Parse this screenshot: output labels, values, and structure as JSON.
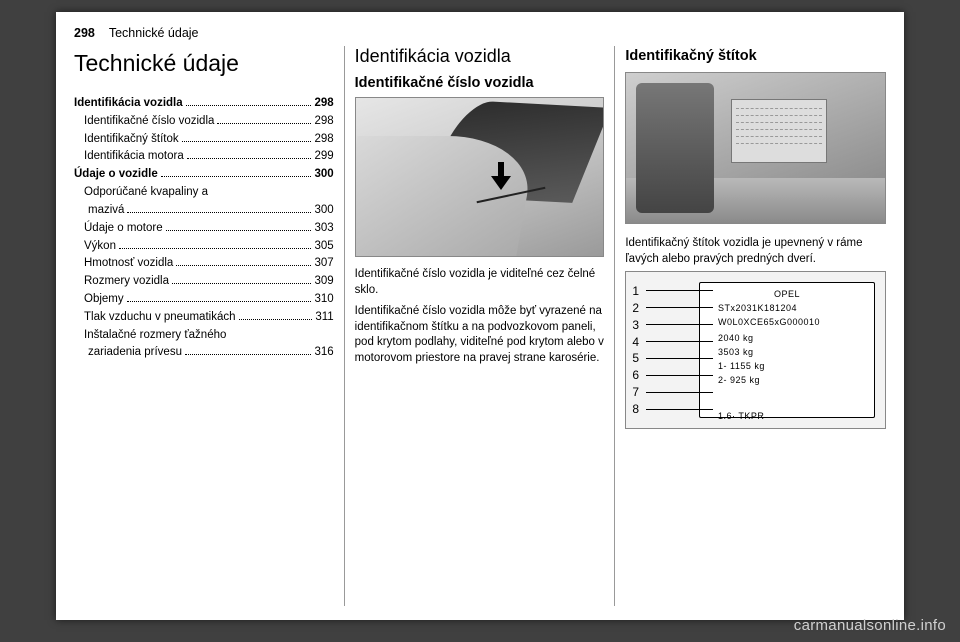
{
  "header": {
    "page_number": "298",
    "section": "Technické údaje"
  },
  "col1": {
    "title": "Technické údaje",
    "toc": [
      {
        "label": "Identifikácia vozidla",
        "page": "298",
        "bold": true
      },
      {
        "label": "Identifikačné číslo vozidla",
        "page": "298",
        "sub": true
      },
      {
        "label": "Identifikačný štítok",
        "page": "298",
        "sub": true
      },
      {
        "label": "Identifikácia motora",
        "page": "299",
        "sub": true
      },
      {
        "label": "Údaje o vozidle",
        "page": "300",
        "bold": true
      },
      {
        "label": "Odporúčané kvapaliny a",
        "cont_label": "mazivá",
        "page": "300",
        "sub": true
      },
      {
        "label": "Údaje o motore",
        "page": "303",
        "sub": true
      },
      {
        "label": "Výkon",
        "page": "305",
        "sub": true
      },
      {
        "label": "Hmotnosť vozidla",
        "page": "307",
        "sub": true
      },
      {
        "label": "Rozmery vozidla",
        "page": "309",
        "sub": true
      },
      {
        "label": "Objemy",
        "page": "310",
        "sub": true
      },
      {
        "label": "Tlak vzduchu v pneumatikách",
        "page": "311",
        "sub": true
      },
      {
        "label": "Inštalačné rozmery ťažného",
        "cont_label": "zariadenia prívesu",
        "page": "316",
        "sub": true
      }
    ]
  },
  "col2": {
    "heading": "Identifikácia vozidla",
    "subheading": "Identifikačné číslo vozidla",
    "para1": "Identifikačné číslo vozidla je viditeľné cez čelné sklo.",
    "para2": "Identifikačné číslo vozidla môže byť vyrazené na identifikačnom štítku a na podvozkovom paneli, pod krytom podlahy, viditeľné pod krytom alebo v motorovom priestore na pravej strane karosérie."
  },
  "col3": {
    "subheading": "Identifikačný štítok",
    "para": "Identifikačný štítok vozidla je upevnený v ráme ľavých alebo pravých predných dverí.",
    "label_plate": {
      "brand": "OPEL",
      "rows": [
        "STx2031K181204",
        "W0L0XCE65xG000010",
        "2040    kg",
        "3503    kg",
        "1- 1155    kg",
        "2-  925    kg",
        "",
        "1.6· TKPR"
      ]
    },
    "numbers": [
      "1",
      "2",
      "3",
      "4",
      "5",
      "6",
      "7",
      "8"
    ]
  },
  "watermark": "carmanualsonline.info"
}
